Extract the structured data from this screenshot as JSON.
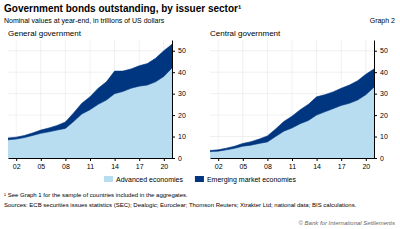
{
  "title": "Government bonds outstanding, by issuer sector¹",
  "subtitle": "Nominal values at year-end, in trillions of US dollars",
  "annotations": [
    "Graph 2",
    "¹ See Graph 1 for the sample of countries included in the aggregates.",
    "Sources: ECB securities issues statistics (SEC); Dealogic; Euroclear; Thomson Reuters; Xtrakter Ltd; national data; BIS calculations.",
    "© Bank for International Settlements"
  ],
  "chart_data": [
    {
      "type": "area",
      "stacked": true,
      "grid": true,
      "title": "General government",
      "x": [
        2001,
        2002,
        2003,
        2004,
        2005,
        2006,
        2007,
        2008,
        2009,
        2010,
        2011,
        2012,
        2013,
        2014,
        2015,
        2016,
        2017,
        2018,
        2019,
        2020,
        2021
      ],
      "series": [
        {
          "name": "Advanced economies",
          "color": "#b8ddf0",
          "values": [
            8.5,
            8.8,
            9.5,
            10.5,
            11.5,
            12.2,
            13.0,
            13.8,
            17.0,
            20.5,
            22.5,
            25.0,
            27.0,
            30.0,
            31.0,
            32.5,
            33.5,
            34.0,
            35.5,
            38.0,
            42.0
          ]
        },
        {
          "name": "Emerging market economies",
          "color": "#003580",
          "values": [
            0.8,
            0.9,
            1.0,
            1.2,
            1.5,
            1.8,
            2.2,
            3.0,
            4.0,
            5.0,
            6.0,
            7.5,
            8.5,
            10.5,
            9.5,
            9.0,
            9.5,
            10.0,
            11.0,
            12.0,
            11.0
          ]
        }
      ],
      "xlim": [
        2001,
        2021
      ],
      "xticks": [
        {
          "value": 2002,
          "label": "02"
        },
        {
          "value": 2005,
          "label": "05"
        },
        {
          "value": 2008,
          "label": "08"
        },
        {
          "value": 2011,
          "label": "11"
        },
        {
          "value": 2014,
          "label": "14"
        },
        {
          "value": 2017,
          "label": "17"
        },
        {
          "value": 2020,
          "label": "20"
        }
      ],
      "ylim": [
        0,
        55
      ],
      "yticks": [
        0,
        10,
        20,
        30,
        40,
        50
      ]
    },
    {
      "type": "area",
      "stacked": true,
      "grid": true,
      "title": "Central government",
      "x": [
        2001,
        2002,
        2003,
        2004,
        2005,
        2006,
        2007,
        2008,
        2009,
        2010,
        2011,
        2012,
        2013,
        2014,
        2015,
        2016,
        2017,
        2018,
        2019,
        2020,
        2021
      ],
      "series": [
        {
          "name": "Advanced economies",
          "color": "#b8ddf0",
          "values": [
            3.0,
            3.2,
            3.8,
            4.5,
            5.5,
            6.0,
            6.8,
            7.5,
            10.0,
            12.5,
            14.0,
            16.0,
            17.5,
            20.0,
            21.5,
            23.0,
            24.5,
            25.5,
            27.0,
            29.5,
            33.0
          ]
        },
        {
          "name": "Emerging market economies",
          "color": "#003580",
          "values": [
            0.5,
            0.6,
            0.8,
            1.0,
            1.3,
            1.6,
            2.0,
            2.8,
            3.5,
            4.5,
            5.5,
            6.5,
            7.5,
            8.5,
            8.0,
            7.8,
            8.0,
            8.5,
            9.0,
            9.5,
            8.5
          ]
        }
      ],
      "xlim": [
        2001,
        2021
      ],
      "xticks": [
        {
          "value": 2002,
          "label": "02"
        },
        {
          "value": 2005,
          "label": "05"
        },
        {
          "value": 2008,
          "label": "08"
        },
        {
          "value": 2011,
          "label": "11"
        },
        {
          "value": 2014,
          "label": "14"
        },
        {
          "value": 2017,
          "label": "17"
        },
        {
          "value": 2020,
          "label": "20"
        }
      ],
      "ylim": [
        0,
        55
      ],
      "yticks": [
        0,
        10,
        20,
        30,
        40,
        50
      ]
    }
  ]
}
